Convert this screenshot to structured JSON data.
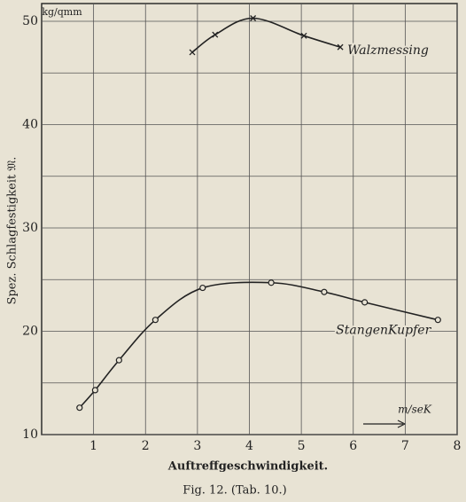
{
  "chart_data": {
    "type": "line",
    "caption": "Fig. 12.  (Tab. 10.)",
    "x_label": "Auftreffgeschwindigkeit.",
    "y_label": "Spez. Schlagfestigkeit 𝔐.",
    "y_unit": "kg/qmm",
    "x_unit": "m/seK",
    "xlim": [
      0,
      8
    ],
    "xticks": [
      1,
      2,
      3,
      4,
      5,
      6,
      7,
      8
    ],
    "ylim": [
      10,
      50
    ],
    "yticks": [
      10,
      20,
      30,
      40,
      50
    ],
    "minor_yticks": [
      15,
      25,
      35,
      45
    ],
    "grid": true,
    "series": [
      {
        "name": "Walzmessing",
        "color": "#222222",
        "marker": "x",
        "x": [
          2.9,
          3.34,
          4.07,
          5.05,
          5.75
        ],
        "values": [
          47.0,
          48.7,
          50.3,
          48.6,
          47.5
        ]
      },
      {
        "name": "StangenKupfer",
        "color": "#222222",
        "marker": "o",
        "x": [
          0.73,
          1.03,
          1.49,
          2.19,
          3.1,
          4.42,
          5.44,
          6.22,
          7.63
        ],
        "values": [
          12.6,
          14.3,
          17.2,
          21.1,
          24.2,
          24.7,
          23.8,
          22.8,
          21.1
        ]
      }
    ]
  }
}
